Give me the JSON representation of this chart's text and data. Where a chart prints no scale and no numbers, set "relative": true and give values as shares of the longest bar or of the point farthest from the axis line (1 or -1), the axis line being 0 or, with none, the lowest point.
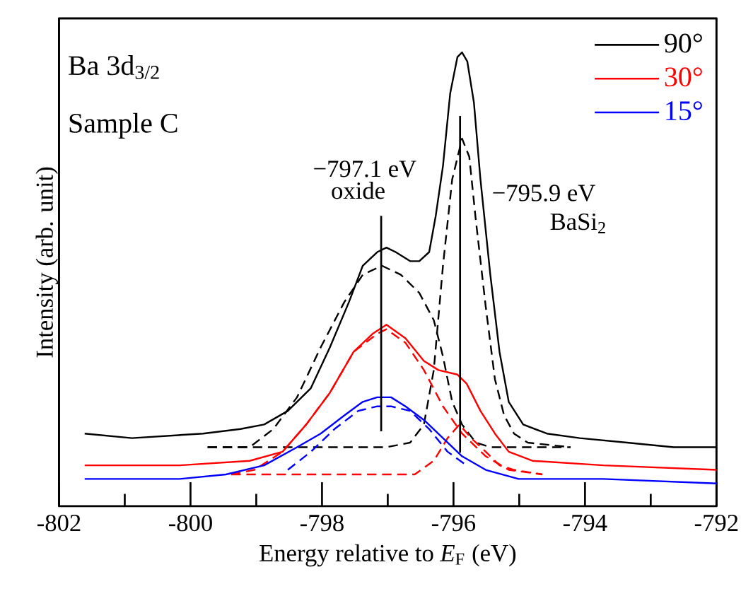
{
  "chart_data": {
    "type": "line",
    "title": "Ba 3d$_{3/2}$",
    "subtitle": "Sample C",
    "xlabel": "Energy relative to *E*$_{F}$ (eV)",
    "ylabel": "Intensity (arb. unit)",
    "relative": true,
    "tick_labels": "x",
    "legend": "top right",
    "xlim": [
      -802,
      -792
    ],
    "xticks": [
      -802,
      {
        "value": -801,
        "label": null
      },
      -800,
      {
        "value": -799,
        "label": null
      },
      -798,
      {
        "value": -797,
        "label": null
      },
      -796,
      {
        "value": -795,
        "label": null
      },
      -794,
      {
        "value": -793,
        "label": null
      },
      -792
    ],
    "series": [
      {
        "name": "90°",
        "color": "#000000",
        "line_style": "solid",
        "x": [
          -801.61,
          -800.89,
          -799.81,
          -799.24,
          -798.88,
          -798.52,
          -798.17,
          -797.88,
          -797.59,
          -797.38,
          -797.16,
          -797.02,
          -796.88,
          -796.66,
          -796.52,
          -796.37,
          -796.27,
          -796.16,
          -796.05,
          -795.94,
          -795.87,
          -795.79,
          -795.69,
          -795.59,
          -795.44,
          -795.3,
          -795.16,
          -794.94,
          -794.58,
          -794.08,
          -793.36,
          -792.65,
          -792.0
        ],
        "values": [
          0.16,
          0.15,
          0.16,
          0.17,
          0.18,
          0.21,
          0.26,
          0.35,
          0.45,
          0.53,
          0.56,
          0.57,
          0.56,
          0.54,
          0.54,
          0.56,
          0.64,
          0.75,
          0.91,
          0.99,
          1.0,
          0.98,
          0.89,
          0.72,
          0.51,
          0.34,
          0.23,
          0.18,
          0.16,
          0.15,
          0.14,
          0.13,
          0.13
        ]
      },
      {
        "color": "#000000",
        "line_style": "dashed",
        "x": [
          -799.74,
          -799.1,
          -798.74,
          -798.38,
          -798.02,
          -797.66,
          -797.38,
          -797.09,
          -796.8,
          -796.52,
          -796.3,
          -796.16,
          -796.02,
          -795.87,
          -795.66,
          -795.44,
          -794.22
        ],
        "values": [
          0.13,
          0.13,
          0.17,
          0.24,
          0.35,
          0.45,
          0.51,
          0.53,
          0.51,
          0.47,
          0.41,
          0.33,
          0.23,
          0.18,
          0.14,
          0.13,
          0.13
        ]
      },
      {
        "color": "#000000",
        "line_style": "dashed",
        "x": [
          -799.74,
          -797.02,
          -796.66,
          -796.45,
          -796.3,
          -796.16,
          -796.02,
          -795.87,
          -795.76,
          -795.66,
          -795.51,
          -795.37,
          -795.23,
          -795.08,
          -794.87,
          -794.22
        ],
        "values": [
          0.13,
          0.13,
          0.14,
          0.18,
          0.3,
          0.53,
          0.72,
          0.81,
          0.77,
          0.63,
          0.44,
          0.28,
          0.2,
          0.16,
          0.14,
          0.13
        ]
      },
      {
        "name": "30°",
        "color": "#ff0000",
        "line_style": "solid",
        "x": [
          -801.61,
          -800.17,
          -799.1,
          -798.6,
          -798.24,
          -797.88,
          -797.52,
          -797.23,
          -797.02,
          -796.73,
          -796.45,
          -796.23,
          -795.94,
          -795.8,
          -795.59,
          -795.37,
          -795.16,
          -794.8,
          -793.72,
          -792.0
        ],
        "values": [
          0.09,
          0.09,
          0.1,
          0.12,
          0.18,
          0.25,
          0.34,
          0.38,
          0.4,
          0.37,
          0.32,
          0.3,
          0.29,
          0.27,
          0.21,
          0.16,
          0.12,
          0.1,
          0.09,
          0.08
        ]
      },
      {
        "color": "#ff0000",
        "line_style": "dashed",
        "x": [
          -799.38,
          -799.03,
          -798.6,
          -798.24,
          -797.88,
          -797.52,
          -797.16,
          -797.02,
          -796.73,
          -796.45,
          -796.16,
          -795.87,
          -795.51,
          -795.16,
          -794.65
        ],
        "values": [
          0.07,
          0.08,
          0.12,
          0.18,
          0.25,
          0.34,
          0.38,
          0.39,
          0.36,
          0.3,
          0.22,
          0.16,
          0.11,
          0.08,
          0.07
        ]
      },
      {
        "color": "#ff0000",
        "line_style": "dashed",
        "x": [
          -799.38,
          -796.59,
          -796.3,
          -796.09,
          -795.91,
          -795.73,
          -795.51,
          -795.3,
          -795.08,
          -794.65
        ],
        "values": [
          0.07,
          0.07,
          0.1,
          0.15,
          0.18,
          0.15,
          0.12,
          0.09,
          0.08,
          0.07
        ]
      },
      {
        "name": "15°",
        "color": "#0000ff",
        "line_style": "solid",
        "x": [
          -801.61,
          -800.17,
          -799.46,
          -798.88,
          -798.38,
          -798.02,
          -797.66,
          -797.38,
          -797.16,
          -796.95,
          -796.73,
          -796.45,
          -796.16,
          -795.87,
          -795.51,
          -795.01,
          -793.72,
          -792.0
        ],
        "values": [
          0.06,
          0.06,
          0.07,
          0.09,
          0.13,
          0.16,
          0.2,
          0.23,
          0.24,
          0.24,
          0.22,
          0.19,
          0.15,
          0.11,
          0.08,
          0.06,
          0.06,
          0.05
        ]
      },
      {
        "color": "#0000ff",
        "line_style": "dashed",
        "x": [
          -798.52,
          -798.17,
          -797.81,
          -797.45,
          -797.16,
          -796.95,
          -796.66,
          -796.37,
          -796.09,
          -795.8
        ],
        "values": [
          0.08,
          0.12,
          0.17,
          0.21,
          0.22,
          0.22,
          0.21,
          0.17,
          0.12,
          0.09
        ]
      }
    ],
    "ref_lines": [
      {
        "axis": "x",
        "value": -797.1,
        "label": "−797.1 eV",
        "color": "#000000"
      },
      {
        "axis": "x",
        "value": -795.9,
        "label": "−795.9 eV",
        "color": "#000000"
      }
    ],
    "annotations": [
      "oxide",
      "BaSi$_{2}$"
    ]
  }
}
